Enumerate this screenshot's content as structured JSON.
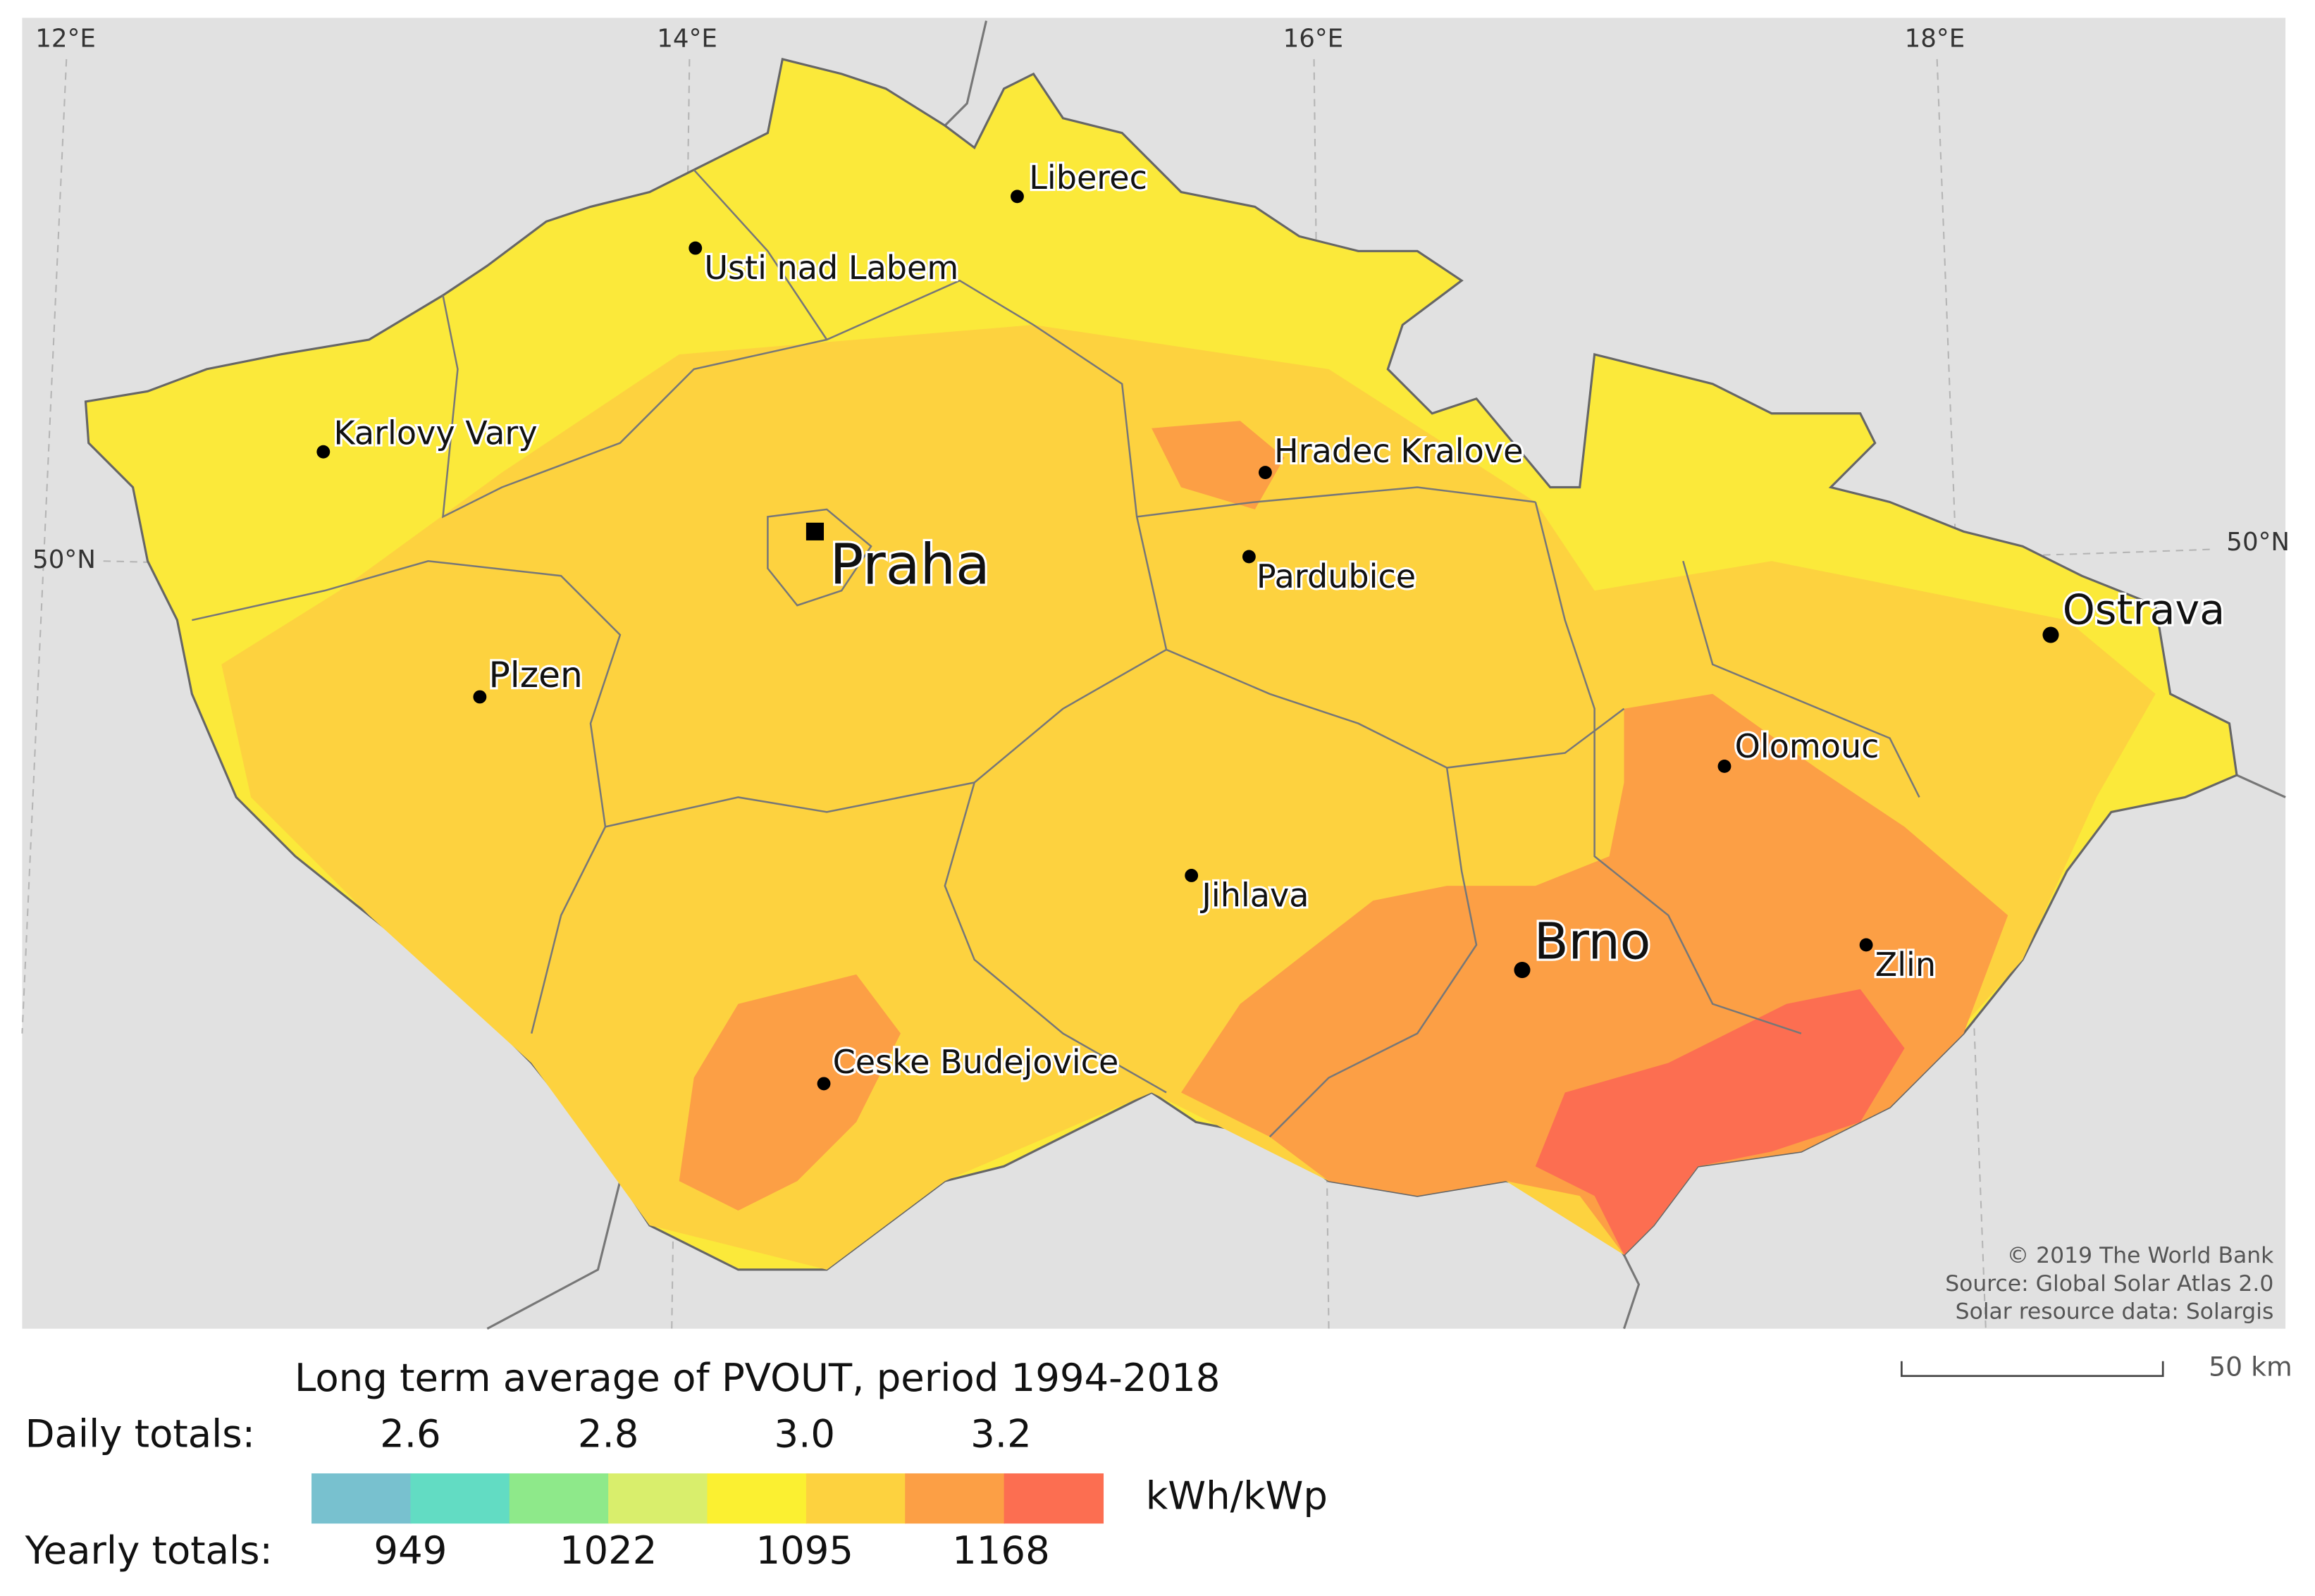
{
  "graticule": {
    "longitudes": [
      "12°E",
      "14°E",
      "16°E",
      "18°E"
    ],
    "latitudes": [
      "50°N",
      "50°N"
    ]
  },
  "cities": [
    {
      "label": "Liberec"
    },
    {
      "label": "Usti nad Labem"
    },
    {
      "label": "Karlovy Vary"
    },
    {
      "label": "Hradec Kralove"
    },
    {
      "label": "Praha"
    },
    {
      "label": "Pardubice"
    },
    {
      "label": "Ostrava"
    },
    {
      "label": "Plzen"
    },
    {
      "label": "Olomouc"
    },
    {
      "label": "Jihlava"
    },
    {
      "label": "Brno"
    },
    {
      "label": "Zlin"
    },
    {
      "label": "Ceske Budejovice"
    }
  ],
  "credits": [
    "© 2019 The World Bank",
    "Source: Global Solar Atlas 2.0",
    "Solar resource data: Solargis"
  ],
  "scale_bar": "50 km",
  "legend": {
    "title": "Long term average of PVOUT, period 1994-2018",
    "daily_label": "Daily totals:",
    "daily_values": [
      "2.6",
      "2.8",
      "3.0",
      "3.2"
    ],
    "yearly_label": "Yearly totals:",
    "yearly_values": [
      "949",
      "1022",
      "1095",
      "1168"
    ],
    "unit": "kWh/kWp",
    "colors": [
      "#78c1cf",
      "#62dcc3",
      "#8ee98a",
      "#d9ee6c",
      "#fbf031",
      "#fdd23f",
      "#fc9f45",
      "#fc6e51"
    ]
  }
}
